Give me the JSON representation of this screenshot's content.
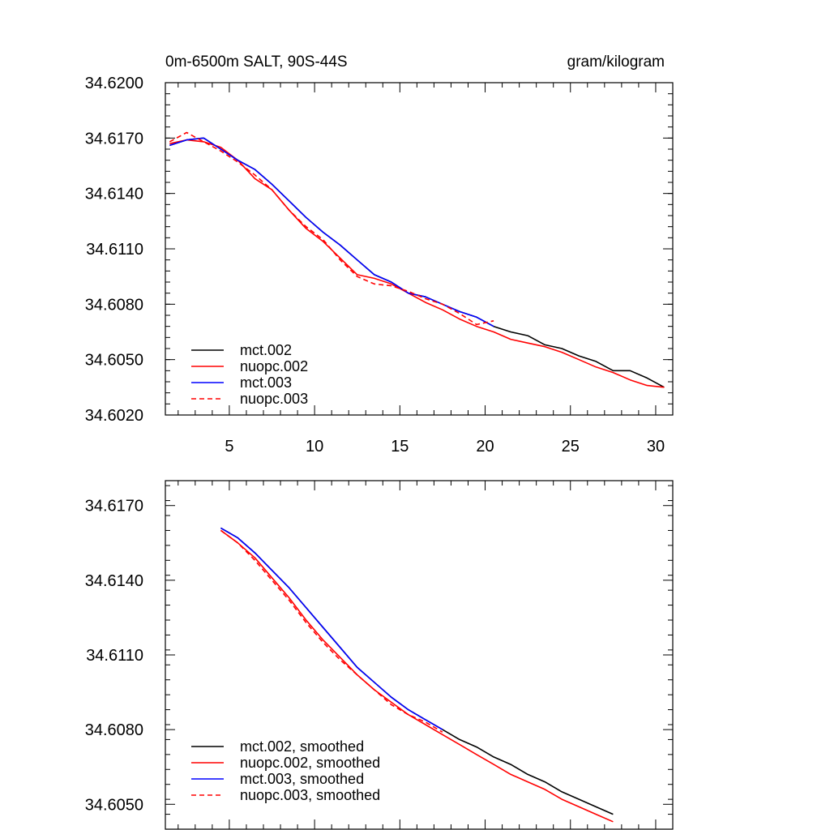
{
  "chart_data": [
    {
      "type": "line",
      "title": "0m-6500m SALT, 90S-44S",
      "units": "gram/kilogram",
      "xlim": [
        1.25,
        31
      ],
      "ylim": [
        34.602,
        34.62
      ],
      "xticks": [
        5,
        10,
        15,
        20,
        25,
        30
      ],
      "yticks": [
        34.602,
        34.605,
        34.608,
        34.611,
        34.614,
        34.617,
        34.62
      ],
      "xtick_labels": [
        "5",
        "10",
        "15",
        "20",
        "25",
        "30"
      ],
      "ytick_labels": [
        "34.6020",
        "34.6050",
        "34.6080",
        "34.6110",
        "34.6140",
        "34.6170",
        "34.6200"
      ],
      "legend_position": "bottom-left",
      "series": [
        {
          "name": "mct.002",
          "color": "#000000",
          "dash": false,
          "x": [
            1.5,
            2.5,
            3.5,
            4.5,
            5.5,
            6.5,
            7.5,
            8.5,
            9.5,
            10.5,
            11.5,
            12.5,
            13.5,
            14.5,
            15.5,
            16.5,
            17.5,
            18.5,
            19.5,
            20.5,
            21.5,
            22.5,
            23.5,
            24.5,
            25.5,
            26.5,
            27.5,
            28.5,
            29.5,
            30.5
          ],
          "y": [
            34.6166,
            34.6169,
            34.617,
            34.6164,
            34.6158,
            34.6153,
            34.6145,
            34.6136,
            34.6127,
            34.6119,
            34.6112,
            34.6104,
            34.6096,
            34.6092,
            34.6086,
            34.6084,
            34.608,
            34.6076,
            34.6073,
            34.6068,
            34.6065,
            34.6063,
            34.6058,
            34.6056,
            34.6052,
            34.6049,
            34.6044,
            34.6044,
            34.604,
            34.6035
          ]
        },
        {
          "name": "nuopc.002",
          "color": "#ff0000",
          "dash": false,
          "x": [
            1.5,
            2.5,
            3.5,
            4.5,
            5.5,
            6.5,
            7.5,
            8.5,
            9.5,
            10.5,
            11.5,
            12.5,
            13.5,
            14.5,
            15.5,
            16.5,
            17.5,
            18.5,
            19.5,
            20.5,
            21.5,
            22.5,
            23.5,
            24.5,
            25.5,
            26.5,
            27.5,
            28.5,
            29.5,
            30.5
          ],
          "y": [
            34.6167,
            34.6169,
            34.6168,
            34.6165,
            34.6158,
            34.6148,
            34.6142,
            34.6131,
            34.6121,
            34.6114,
            34.6105,
            34.6096,
            34.6094,
            34.6091,
            34.6086,
            34.6081,
            34.6077,
            34.6072,
            34.6068,
            34.6065,
            34.6061,
            34.6059,
            34.6057,
            34.6054,
            34.605,
            34.6046,
            34.6043,
            34.6039,
            34.6036,
            34.6035
          ]
        },
        {
          "name": "mct.003",
          "color": "#0000ff",
          "dash": false,
          "x": [
            1.5,
            2.5,
            3.5,
            4.5,
            5.5,
            6.5,
            7.5,
            8.5,
            9.5,
            10.5,
            11.5,
            12.5,
            13.5,
            14.5,
            15.5,
            16.5,
            17.5,
            18.5,
            19.5,
            20.5
          ],
          "y": [
            34.6166,
            34.6169,
            34.617,
            34.6164,
            34.6158,
            34.6153,
            34.6145,
            34.6136,
            34.6127,
            34.6119,
            34.6112,
            34.6104,
            34.6096,
            34.6092,
            34.6086,
            34.6084,
            34.608,
            34.6076,
            34.6073,
            34.6068
          ]
        },
        {
          "name": "nuopc.003",
          "color": "#ff0000",
          "dash": true,
          "x": [
            1.5,
            2.5,
            3.5,
            4.5,
            5.5,
            6.5,
            7.5,
            8.5,
            9.5,
            10.5,
            11.5,
            12.5,
            13.5,
            14.5,
            15.5,
            16.5,
            17.5,
            18.5,
            19.5,
            20.5
          ],
          "y": [
            34.6168,
            34.6173,
            34.6168,
            34.6163,
            34.6157,
            34.615,
            34.6142,
            34.6131,
            34.6122,
            34.6115,
            34.6104,
            34.6095,
            34.6091,
            34.609,
            34.6087,
            34.6083,
            34.608,
            34.6075,
            34.6069,
            34.6071
          ]
        }
      ]
    },
    {
      "type": "line",
      "xlim": [
        1.25,
        31
      ],
      "ylim": [
        34.604,
        34.618
      ],
      "xticks": [
        5,
        10,
        15,
        20,
        25,
        30
      ],
      "yticks": [
        34.605,
        34.608,
        34.611,
        34.614,
        34.617
      ],
      "ytick_labels": [
        "34.6050",
        "34.6080",
        "34.6110",
        "34.6140",
        "34.6170"
      ],
      "legend_position": "bottom-left",
      "series": [
        {
          "name": "mct.002, smoothed",
          "color": "#000000",
          "dash": false,
          "x": [
            4.5,
            5.5,
            6.5,
            7.5,
            8.5,
            9.5,
            10.5,
            11.5,
            12.5,
            13.5,
            14.5,
            15.5,
            16.5,
            17.5,
            18.5,
            19.5,
            20.5,
            21.5,
            22.5,
            23.5,
            24.5,
            25.5,
            26.5,
            27.5
          ],
          "y": [
            34.6161,
            34.6157,
            34.6151,
            34.6144,
            34.6137,
            34.6129,
            34.6121,
            34.6113,
            34.6105,
            34.6099,
            34.6093,
            34.6088,
            34.6084,
            34.608,
            34.6076,
            34.6073,
            34.6069,
            34.6066,
            34.6062,
            34.6059,
            34.6055,
            34.6052,
            34.6049,
            34.6046
          ]
        },
        {
          "name": "nuopc.002, smoothed",
          "color": "#ff0000",
          "dash": false,
          "x": [
            4.5,
            5.5,
            6.5,
            7.5,
            8.5,
            9.5,
            10.5,
            11.5,
            12.5,
            13.5,
            14.5,
            15.5,
            16.5,
            17.5,
            18.5,
            19.5,
            20.5,
            21.5,
            22.5,
            23.5,
            24.5,
            25.5,
            26.5,
            27.5
          ],
          "y": [
            34.616,
            34.6155,
            34.6149,
            34.6141,
            34.6133,
            34.6124,
            34.6116,
            34.6109,
            34.6102,
            34.6096,
            34.6091,
            34.6086,
            34.6082,
            34.6078,
            34.6074,
            34.607,
            34.6066,
            34.6062,
            34.6059,
            34.6056,
            34.6052,
            34.6049,
            34.6046,
            34.6043
          ]
        },
        {
          "name": "mct.003, smoothed",
          "color": "#0000ff",
          "dash": false,
          "x": [
            4.5,
            5.5,
            6.5,
            7.5,
            8.5,
            9.5,
            10.5,
            11.5,
            12.5,
            13.5,
            14.5,
            15.5,
            16.5,
            17.5
          ],
          "y": [
            34.6161,
            34.6157,
            34.6151,
            34.6144,
            34.6137,
            34.6129,
            34.6121,
            34.6113,
            34.6105,
            34.6099,
            34.6093,
            34.6088,
            34.6084,
            34.608
          ]
        },
        {
          "name": "nuopc.003, smoothed",
          "color": "#ff0000",
          "dash": true,
          "x": [
            4.5,
            5.5,
            6.5,
            7.5,
            8.5,
            9.5,
            10.5,
            11.5,
            12.5,
            13.5,
            14.5,
            15.5,
            16.5,
            17.5
          ],
          "y": [
            34.616,
            34.6155,
            34.6148,
            34.614,
            34.6132,
            34.6123,
            34.6115,
            34.6108,
            34.6102,
            34.6096,
            34.609,
            34.6086,
            34.6083,
            34.6079
          ]
        }
      ]
    }
  ]
}
